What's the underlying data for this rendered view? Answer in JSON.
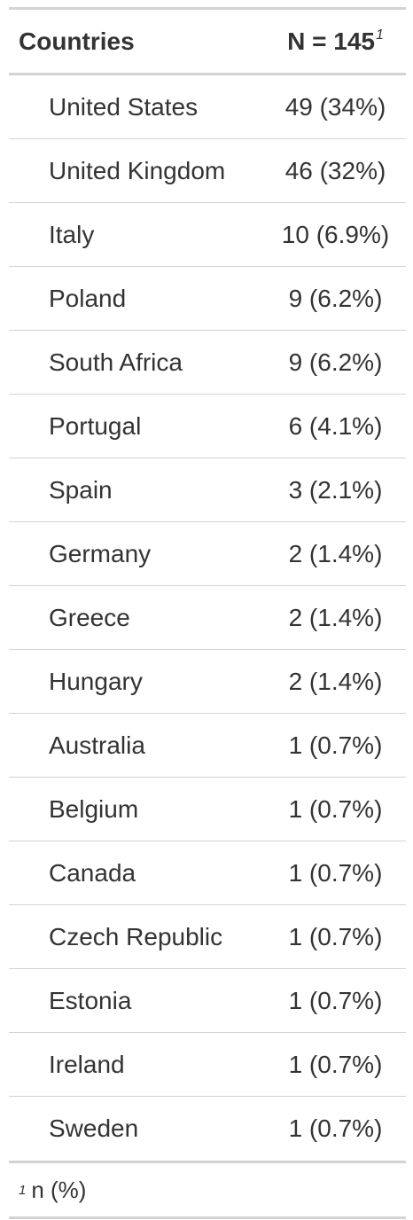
{
  "table": {
    "header": {
      "col1": "Countries",
      "col2": "N = 145",
      "col2_footnote_mark": "1"
    },
    "rows": [
      {
        "country": "United States",
        "value": "49 (34%)"
      },
      {
        "country": "United Kingdom",
        "value": "46 (32%)"
      },
      {
        "country": "Italy",
        "value": "10 (6.9%)"
      },
      {
        "country": "Poland",
        "value": "9 (6.2%)"
      },
      {
        "country": "South Africa",
        "value": "9 (6.2%)"
      },
      {
        "country": "Portugal",
        "value": "6 (4.1%)"
      },
      {
        "country": "Spain",
        "value": "3 (2.1%)"
      },
      {
        "country": "Germany",
        "value": "2 (1.4%)"
      },
      {
        "country": "Greece",
        "value": "2 (1.4%)"
      },
      {
        "country": "Hungary",
        "value": "2 (1.4%)"
      },
      {
        "country": "Australia",
        "value": "1 (0.7%)"
      },
      {
        "country": "Belgium",
        "value": "1 (0.7%)"
      },
      {
        "country": "Canada",
        "value": "1 (0.7%)"
      },
      {
        "country": "Czech Republic",
        "value": "1 (0.7%)"
      },
      {
        "country": "Estonia",
        "value": "1 (0.7%)"
      },
      {
        "country": "Ireland",
        "value": "1 (0.7%)"
      },
      {
        "country": "Sweden",
        "value": "1 (0.7%)"
      }
    ],
    "footnote": {
      "mark": "1",
      "text": "n (%)"
    }
  }
}
